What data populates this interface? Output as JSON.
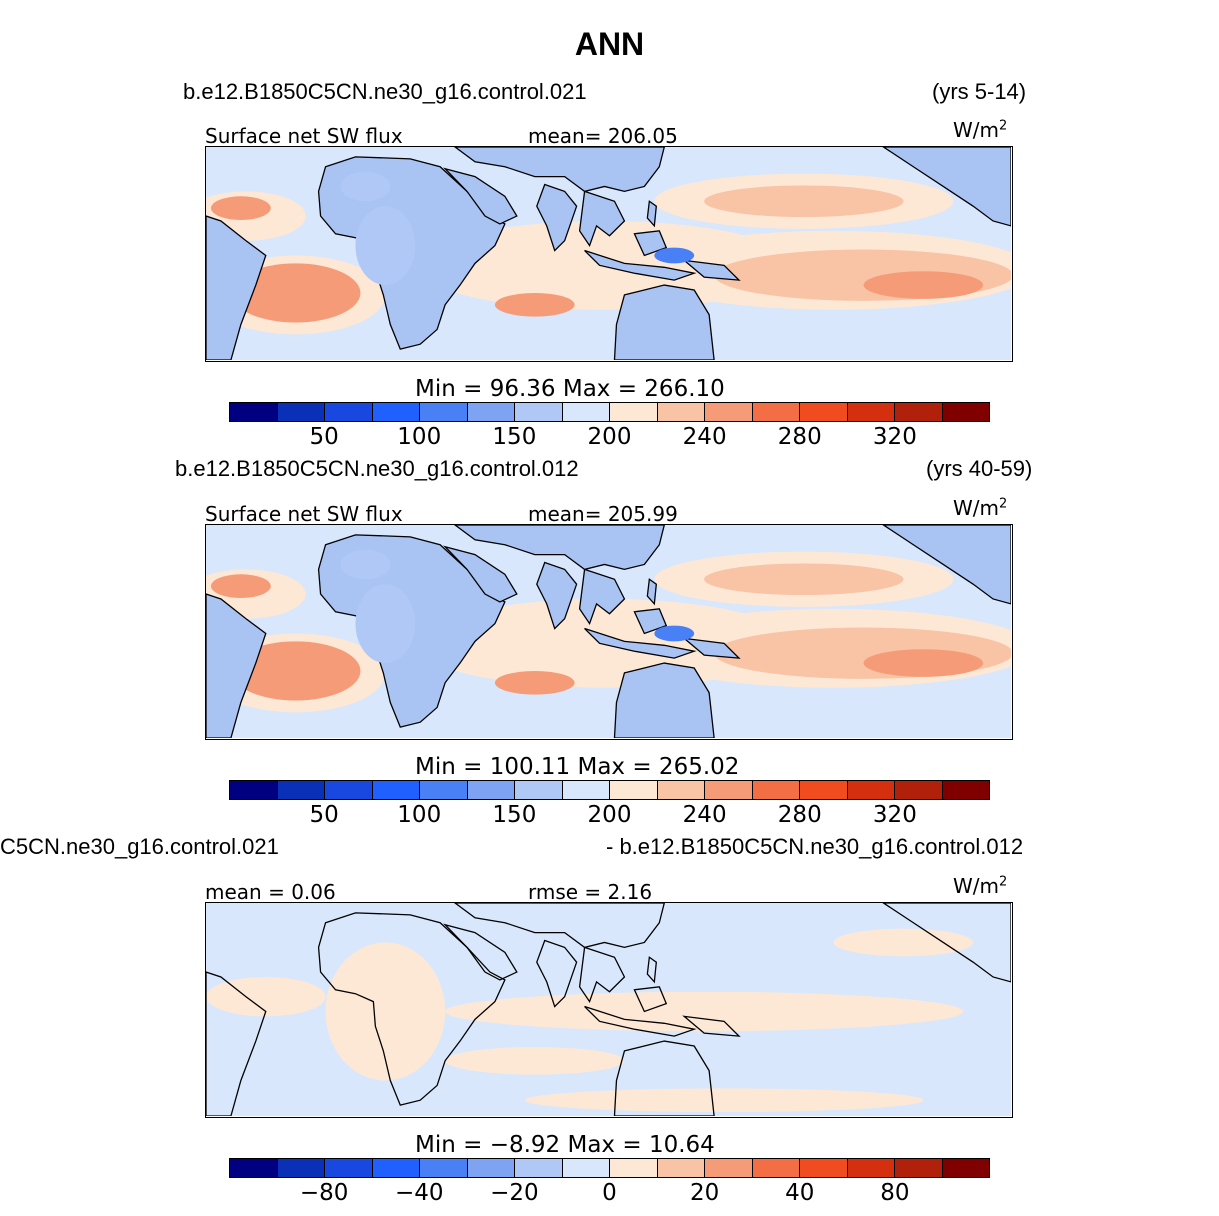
{
  "title": "ANN",
  "colors": {
    "palette": [
      "#000080",
      "#0a30b8",
      "#1848e0",
      "#2060ff",
      "#4a80f5",
      "#7ea3f2",
      "#b0c8f6",
      "#d8e7fb",
      "#fde8d6",
      "#f9c3a5",
      "#f59b78",
      "#f36e44",
      "#f04c1f",
      "#d43010",
      "#b0200a",
      "#800000"
    ],
    "land": "#a9c3f2",
    "contrast_land": "#b8d0f5",
    "coast": "#000000"
  },
  "panels": [
    {
      "case": "b.e12.B1850C5CN.ne30_g16.control.021",
      "years": "(yrs 5-14)",
      "var_label": "Surface net SW flux",
      "stat_label": "mean= 206.05",
      "units": "W/m",
      "units_sup": "2",
      "minmax": "Min =   96.36  Max =  266.10",
      "ticks": [
        "50",
        "100",
        "150",
        "200",
        "240",
        "280",
        "320"
      ]
    },
    {
      "case": "b.e12.B1850C5CN.ne30_g16.control.012",
      "years": "(yrs 40-59)",
      "var_label": "Surface net SW flux",
      "stat_label": "mean= 205.99",
      "units": "W/m",
      "units_sup": "2",
      "minmax": "Min = 100.11  Max =  265.02",
      "ticks": [
        "50",
        "100",
        "150",
        "200",
        "240",
        "280",
        "320"
      ]
    },
    {
      "case": "C5CN.ne30_g16.control.021",
      "years": "- b.e12.B1850C5CN.ne30_g16.control.012",
      "var_label": "mean =    0.06",
      "stat_label": "rmse =    2.16",
      "units": "W/m",
      "units_sup": "2",
      "minmax": "Min =  −8.92  Max =   10.64",
      "ticks": [
        "−80",
        "−40",
        "−20",
        "0",
        "20",
        "40",
        "80"
      ]
    }
  ]
}
